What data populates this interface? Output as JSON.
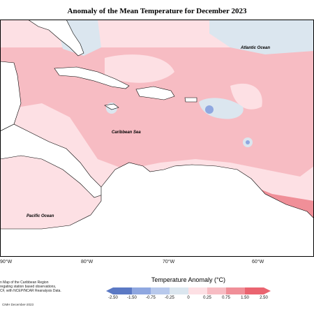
{
  "title": "Anomaly of the Mean Temperature for December 2023",
  "map": {
    "ocean_labels": [
      "Atlantic Ocean",
      "Caribbean Sea",
      "Pacific Ocean"
    ],
    "longitude_ticks": [
      "90°W",
      "80°W",
      "70°W",
      "60°W"
    ]
  },
  "legend": {
    "title": "Temperature Anomaly (°C)",
    "labels": [
      "-2.50",
      "-1.50",
      "-0.75",
      "-0.25",
      "0",
      "0.25",
      "0.75",
      "1.50",
      "2.50"
    ],
    "colors": [
      "#5b79c4",
      "#8fa7e0",
      "#b8c9ec",
      "#dbe6ef",
      "#ffffff",
      "#fde0e4",
      "#f7bcc3",
      "#f08f98",
      "#ea6470"
    ]
  },
  "notes": {
    "line1": "n Map of the Caribbean Region",
    "line2": "regating station based observations,",
    "line3": "CF, with NCEP/NCAR Reanalysis Data."
  },
  "credit": "CIMH December-2023"
}
